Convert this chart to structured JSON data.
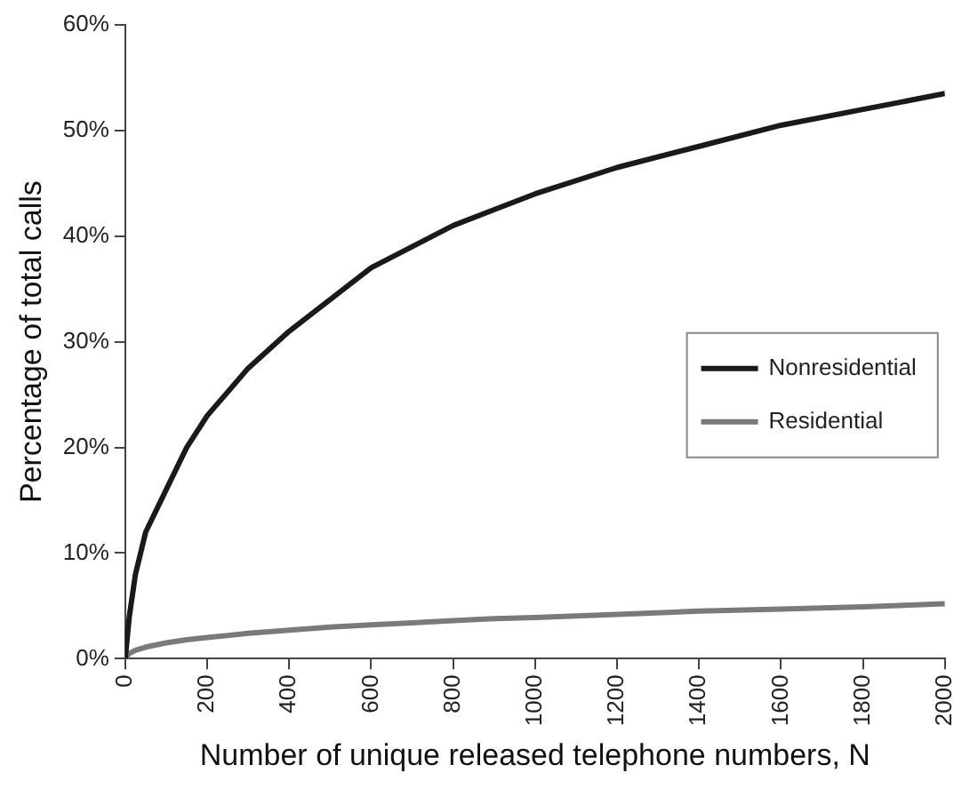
{
  "chart_data": {
    "type": "line",
    "xlabel": "Number of unique released telephone numbers, N",
    "ylabel": "Percentage of total calls",
    "x": [
      0,
      10,
      25,
      50,
      100,
      150,
      200,
      300,
      400,
      500,
      600,
      700,
      800,
      900,
      1000,
      1200,
      1400,
      1600,
      1800,
      2000
    ],
    "series": [
      {
        "name": "Nonresidential",
        "color": "#1a1a1a",
        "values": [
          0,
          4,
          8,
          12,
          16,
          20,
          23,
          27.5,
          31,
          34,
          37,
          39,
          41,
          42.5,
          44,
          46.5,
          48.5,
          50.5,
          52,
          53.5
        ]
      },
      {
        "name": "Residential",
        "color": "#7a7a7a",
        "values": [
          0,
          0.5,
          0.8,
          1.1,
          1.5,
          1.8,
          2,
          2.4,
          2.7,
          3,
          3.2,
          3.4,
          3.6,
          3.8,
          3.9,
          4.2,
          4.5,
          4.7,
          4.9,
          5.2
        ]
      }
    ],
    "xlim": [
      0,
      2000
    ],
    "xticks": [
      0,
      200,
      400,
      600,
      800,
      1000,
      1200,
      1400,
      1600,
      1800,
      2000
    ],
    "ylim": [
      0,
      60
    ],
    "yticks": [
      {
        "value": 0,
        "label": "0%"
      },
      {
        "value": 10,
        "label": "10%"
      },
      {
        "value": 20,
        "label": "20%"
      },
      {
        "value": 30,
        "label": "30%"
      },
      {
        "value": 40,
        "label": "40%"
      },
      {
        "value": 50,
        "label": "50%"
      },
      {
        "value": 60,
        "label": "60%"
      }
    ],
    "grid": false,
    "legend": "right",
    "marker": "none",
    "line_style": "solid"
  }
}
